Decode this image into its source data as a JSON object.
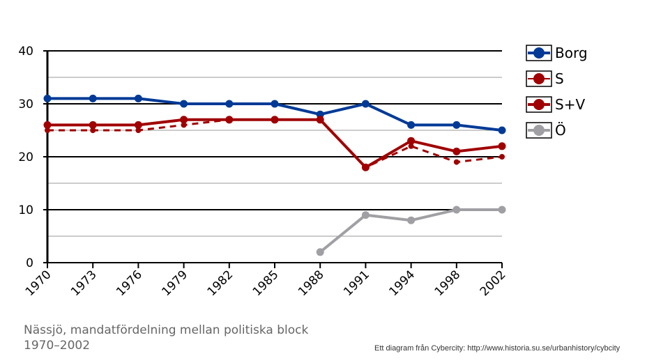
{
  "chart_data": {
    "type": "line",
    "title": "Nässjö, mandatfördelning mellan politiska block 1970–2002",
    "credit": "Ett diagram från Cybercity: http://www.historia.su.se/urbanhistory/cybcity",
    "categories": [
      "1970",
      "1973",
      "1976",
      "1979",
      "1982",
      "1985",
      "1988",
      "1991",
      "1994",
      "1998",
      "2002"
    ],
    "ylim": [
      0,
      40
    ],
    "yticks": [
      0,
      10,
      20,
      30,
      40
    ],
    "grid": true,
    "legend_position": "right",
    "series": [
      {
        "name": "Borg",
        "color": "#003a96",
        "style": "solid",
        "values": [
          31,
          31,
          31,
          30,
          30,
          30,
          28,
          30,
          26,
          26,
          25
        ]
      },
      {
        "name": "S",
        "color": "#a00000",
        "style": "dashed",
        "values": [
          25,
          25,
          25,
          26,
          27,
          27,
          27,
          18,
          22,
          19,
          20
        ]
      },
      {
        "name": "S+V",
        "color": "#a00000",
        "style": "solid",
        "values": [
          26,
          26,
          26,
          27,
          27,
          27,
          27,
          18,
          23,
          21,
          22
        ]
      },
      {
        "name": "Ö",
        "color": "#a0a0a4",
        "style": "solid",
        "values": [
          null,
          null,
          null,
          null,
          null,
          null,
          2,
          9,
          8,
          10,
          10
        ]
      }
    ]
  }
}
